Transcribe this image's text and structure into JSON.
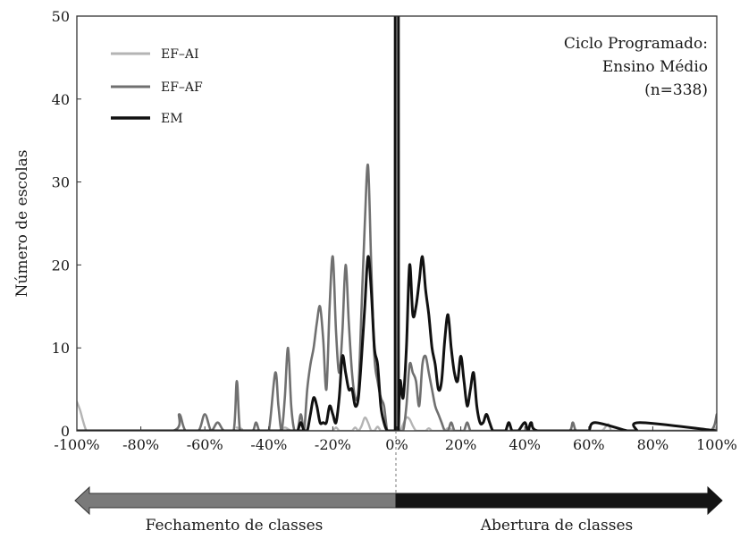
{
  "chart_data": {
    "type": "line",
    "title": "",
    "xlabel": "",
    "ylabel": "Número de escolas",
    "xlim": [
      -100,
      100
    ],
    "ylim": [
      0,
      50
    ],
    "grid": false,
    "legend_position": "top-left",
    "x_tick_labels": [
      "-100%",
      "-80%",
      "-60%",
      "-40%",
      "-20%",
      "0%",
      "20%",
      "40%",
      "60%",
      "80%",
      "100%"
    ],
    "y_tick_labels": [
      "0",
      "10",
      "20",
      "30",
      "40",
      "50"
    ],
    "annotation": [
      "Ciclo Programado:",
      "Ensino Médio",
      "(n=338)"
    ],
    "arrow_labels": {
      "left": "Fechamento de classes",
      "right": "Abertura de classes"
    },
    "series": [
      {
        "name": "EF–AI",
        "color": "#b4b4b4",
        "x": [
          -100,
          -99,
          -97,
          -95,
          -94,
          -52,
          -50,
          -48,
          -47,
          -46,
          -43,
          -41,
          -37,
          -35,
          -33,
          -31,
          -30,
          -29,
          -27,
          -25,
          -23,
          -21,
          -20,
          -19,
          -18,
          -17,
          -16,
          -15,
          -14,
          -13,
          -12,
          -11,
          -10,
          -9,
          -8,
          -7,
          -6,
          -5,
          -4,
          -3,
          -2,
          -1,
          0,
          1,
          2,
          3,
          4,
          5,
          6,
          7,
          8,
          9,
          10,
          11,
          12,
          13,
          14,
          15,
          16,
          18,
          20,
          22,
          24,
          25,
          26,
          28,
          30,
          35,
          40,
          45,
          50,
          55,
          60,
          64,
          66,
          67,
          68,
          70,
          75,
          80,
          85,
          90,
          95,
          98,
          99,
          100
        ],
        "y": [
          3.5,
          2.5,
          0,
          0,
          0,
          0,
          0.4,
          0,
          0,
          0,
          0,
          0,
          0,
          0.4,
          0,
          0,
          0,
          0,
          0,
          0,
          0,
          0,
          0,
          0.4,
          0,
          0,
          0,
          0,
          0,
          0.4,
          0,
          0.6,
          1.6,
          1,
          0,
          0,
          0.5,
          0,
          0,
          0,
          0,
          0,
          0,
          0,
          0.8,
          1.6,
          1.4,
          0.6,
          0,
          0,
          0,
          0,
          0.3,
          0,
          0,
          0,
          0,
          0,
          0.3,
          0,
          0,
          0,
          0,
          0,
          0,
          0,
          0,
          0,
          0,
          0,
          0,
          0,
          0,
          0,
          0.8,
          0,
          0,
          0,
          0,
          0,
          0,
          0,
          0,
          0,
          0,
          0.5
        ]
      },
      {
        "name": "EF–AF",
        "color": "#707070",
        "x": [
          -100,
          -90,
          -70,
          -68,
          -66,
          -62,
          -60,
          -58,
          -56,
          -54,
          -51,
          -50,
          -49,
          -47,
          -45,
          -44,
          -43,
          -42,
          -40,
          -38,
          -37,
          -36,
          -35,
          -34,
          -33,
          -32,
          -31,
          -30,
          -29,
          -28,
          -27,
          -26,
          -25,
          -24,
          -23,
          -22,
          -21,
          -20,
          -19,
          -18,
          -17,
          -16,
          -15,
          -14,
          -13,
          -12,
          -11,
          -10,
          -9,
          -8,
          -7,
          -6,
          -5,
          -4,
          -3,
          -2,
          -1,
          0,
          1,
          2,
          3,
          4,
          5,
          6,
          7,
          8,
          9,
          10,
          11,
          12,
          13,
          14,
          15,
          16,
          17,
          18,
          19,
          20,
          21,
          22,
          23,
          24,
          25,
          26,
          28,
          30,
          40,
          50,
          54,
          55,
          56,
          58,
          60,
          65,
          70,
          80,
          90,
          98,
          100
        ],
        "y": [
          0,
          0,
          0,
          2,
          0,
          0,
          2,
          0,
          1,
          0,
          0,
          6,
          0,
          0,
          0,
          1,
          0,
          0,
          0,
          7,
          3,
          0,
          4,
          10,
          3,
          0,
          0,
          2,
          0,
          5,
          8,
          10,
          13,
          15,
          11,
          5,
          15,
          21,
          12,
          7,
          12,
          20,
          13,
          7,
          4,
          5,
          15,
          25,
          32,
          20,
          9,
          6,
          4,
          3,
          0,
          0,
          0,
          0,
          0,
          0,
          3,
          8,
          7,
          6,
          3,
          8,
          9,
          7,
          5,
          3,
          2,
          1,
          0,
          0,
          1,
          0,
          0,
          0,
          0,
          1,
          0,
          0,
          0,
          0,
          0,
          0,
          0,
          0,
          0,
          1,
          0,
          0,
          0,
          0,
          0,
          0,
          0,
          0,
          2
        ]
      },
      {
        "name": "EM",
        "color": "#111111",
        "x": [
          -100,
          -35,
          -32,
          -31,
          -30,
          -29,
          -28,
          -27,
          -26,
          -25,
          -24,
          -23,
          -22,
          -21,
          -20,
          -19,
          -18,
          -17,
          -16,
          -15,
          -14,
          -13,
          -12,
          -11,
          -10,
          -9,
          -8,
          -7,
          -6,
          -5,
          -4,
          -3,
          -2,
          -1,
          -0.5,
          -0.5,
          0.5,
          0.5,
          1,
          2,
          3,
          4,
          5,
          6,
          7,
          8,
          9,
          10,
          11,
          12,
          13,
          14,
          15,
          16,
          17,
          18,
          19,
          20,
          21,
          22,
          23,
          24,
          25,
          26,
          27,
          28,
          29,
          30,
          31,
          33,
          34,
          35,
          36,
          37,
          38,
          40,
          41,
          42,
          44,
          56,
          58,
          60,
          62,
          72,
          74,
          75,
          76,
          100
        ],
        "y": [
          0,
          0,
          0,
          0,
          1,
          0,
          0,
          2,
          4,
          3,
          1,
          1,
          1,
          3,
          2,
          1,
          4,
          9,
          7,
          5,
          5,
          3,
          4,
          9,
          15,
          21,
          17,
          10,
          8,
          3,
          1,
          0,
          0,
          0,
          0,
          50,
          50,
          0,
          6,
          4,
          10,
          20,
          14,
          15,
          18,
          21,
          17,
          14,
          10,
          8,
          5,
          6,
          11,
          14,
          10,
          7,
          6,
          9,
          6,
          3,
          5,
          7,
          3,
          1,
          1,
          2,
          1,
          0,
          0,
          0,
          0,
          1,
          0,
          0,
          0,
          1,
          0,
          1,
          0,
          0,
          0,
          0,
          1,
          0,
          0,
          0,
          1,
          0
        ]
      }
    ]
  }
}
